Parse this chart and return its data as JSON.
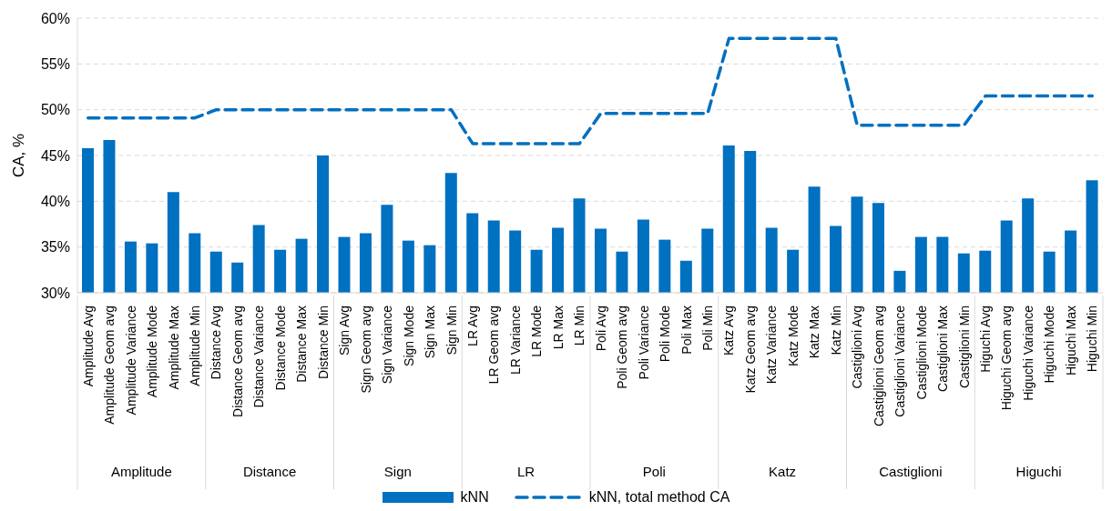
{
  "chart_data": {
    "type": "bar",
    "ylabel": "CA, %",
    "categories": [
      "Amplitude Avg",
      "Amplitude Geom avg",
      "Amplitude Variance",
      "Amplitude Mode",
      "Amplitude Max",
      "Amplitude Min",
      "Distance Avg",
      "Distance Geom avg",
      "Distance Variance",
      "Distance Mode",
      "Distance Max",
      "Distance Min",
      "Sign Avg",
      "Sign Geom avg",
      "Sign Variance",
      "Sign Mode",
      "Sign Max",
      "Sign Min",
      "LR Avg",
      "LR Geom avg",
      "LR Variance",
      "LR Mode",
      "LR Max",
      "LR Min",
      "Poli Avg",
      "Poli Geom avg",
      "Poli Variance",
      "Poli Mode",
      "Poli Max",
      "Poli Min",
      "Katz Avg",
      "Katz Geom avg",
      "Katz Variance",
      "Katz Mode",
      "Katz Max",
      "Katz Min",
      "Castiglioni Avg",
      "Castiglioni Geom avg",
      "Castiglioni Variance",
      "Castiglioni Mode",
      "Castiglioni Max",
      "Castiglioni Min",
      "Higuchi Avg",
      "Higuchi Geom avg",
      "Higuchi Variance",
      "Higuchi Mode",
      "Higuchi Max",
      "Higuchi Min"
    ],
    "annotations": [
      "Amplitude",
      "Distance",
      "Sign",
      "LR",
      "Poli",
      "Katz",
      "Castiglioni",
      "Higuchi"
    ],
    "series": [
      {
        "name": "kNN",
        "color": "#0070c0",
        "values": [
          45.8,
          46.7,
          35.6,
          35.4,
          41.0,
          36.5,
          34.5,
          33.3,
          37.4,
          34.7,
          35.9,
          45.0,
          36.1,
          36.5,
          39.6,
          35.7,
          35.2,
          43.1,
          38.7,
          37.9,
          36.8,
          34.7,
          37.1,
          40.3,
          37.0,
          34.5,
          38.0,
          35.8,
          33.5,
          37.0,
          46.1,
          45.5,
          37.1,
          34.7,
          41.6,
          37.3,
          40.5,
          39.8,
          32.4,
          36.1,
          36.1,
          34.3,
          34.6,
          37.9,
          40.3,
          34.5,
          36.8,
          42.3
        ]
      },
      {
        "name": "kNN, total method CA",
        "type": "line",
        "line_style": "dashed",
        "color": "#0070c0",
        "values": [
          49.1,
          49.1,
          49.1,
          49.1,
          49.1,
          49.1,
          50.0,
          50.0,
          50.0,
          50.0,
          50.0,
          50.0,
          50.0,
          50.0,
          50.0,
          50.0,
          50.0,
          50.0,
          46.3,
          46.3,
          46.3,
          46.3,
          46.3,
          46.3,
          49.6,
          49.6,
          49.6,
          49.6,
          49.6,
          49.6,
          57.8,
          57.8,
          57.8,
          57.8,
          57.8,
          57.8,
          48.3,
          48.3,
          48.3,
          48.3,
          48.3,
          48.3,
          51.5,
          51.5,
          51.5,
          51.5,
          51.5,
          51.5
        ]
      }
    ],
    "ylim": [
      30,
      60
    ],
    "yticks": [
      {
        "value": 30,
        "label": "30%"
      },
      {
        "value": 35,
        "label": "35%"
      },
      {
        "value": 40,
        "label": "40%"
      },
      {
        "value": 45,
        "label": "45%"
      },
      {
        "value": 50,
        "label": "50%"
      },
      {
        "value": 55,
        "label": "55%"
      },
      {
        "value": 60,
        "label": "60%"
      }
    ],
    "grid": "y",
    "legend": "bottom",
    "marker": "none"
  }
}
